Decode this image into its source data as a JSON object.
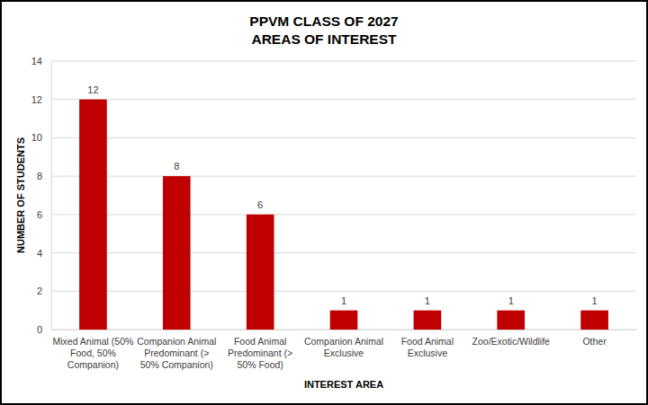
{
  "chart_data": {
    "type": "bar",
    "title": "PPVM CLASS OF 2027",
    "subtitle": "AREAS OF INTEREST",
    "x_label": "INTEREST AREA",
    "y_label": "NUMBER OF STUDENTS",
    "categories": [
      "Mixed Animal (50% Food, 50% Companion)",
      "Companion Animal Predominant (> 50% Companion)",
      "Food Animal Predominant (> 50% Food)",
      "Companion Animal Exclusive",
      "Food Animal Exclusive",
      "Zoo/Exotic/Wildlife",
      "Other"
    ],
    "values": [
      12,
      8,
      6,
      1,
      1,
      1,
      1
    ],
    "color": "#c00000",
    "ylim": [
      0,
      14
    ],
    "yticks": [
      0,
      2,
      4,
      6,
      8,
      10,
      12,
      14
    ],
    "grid": true,
    "data_labels": true
  }
}
